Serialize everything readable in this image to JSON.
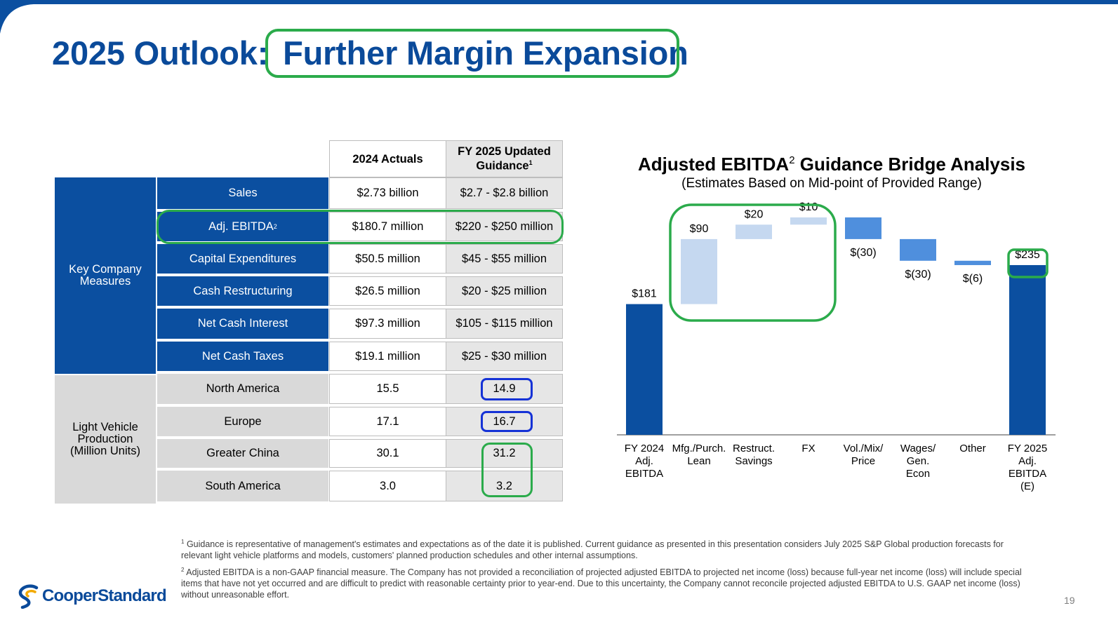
{
  "header": {
    "title_prefix": "2025 Outlook:",
    "title_highlight": "Further Margin Expansion"
  },
  "colors": {
    "brand_blue": "#0b4fa0",
    "light_bar": "#c5d8f0",
    "mid_bar": "#4f8fdd",
    "highlight_green": "#2bab4b",
    "highlight_blue": "#1532d6"
  },
  "table": {
    "col_headers": {
      "actuals": "2024 Actuals",
      "guidance": "FY 2025 Updated Guidance",
      "guidance_sup": "1"
    },
    "group_key": "Key Company Measures",
    "group_lv": "Light Vehicle Production (Million Units)",
    "rows": [
      {
        "label": "Sales",
        "actual": "$2.73 billion",
        "guidance": "$2.7 - $2.8 billion"
      },
      {
        "label": "Adj. EBITDA",
        "label_sup": "2",
        "actual": "$180.7 million",
        "guidance": "$220 - $250 million"
      },
      {
        "label": "Capital Expenditures",
        "actual": "$50.5 million",
        "guidance": "$45 - $55 million"
      },
      {
        "label": "Cash Restructuring",
        "actual": "$26.5 million",
        "guidance": "$20 - $25 million"
      },
      {
        "label": "Net Cash Interest",
        "actual": "$97.3 million",
        "guidance": "$105 - $115 million"
      },
      {
        "label": "Net Cash Taxes",
        "actual": "$19.1 million",
        "guidance": "$25 - $30 million"
      },
      {
        "label": "North America",
        "actual": "15.5",
        "guidance": "14.9"
      },
      {
        "label": "Europe",
        "actual": "17.1",
        "guidance": "16.7"
      },
      {
        "label": "Greater China",
        "actual": "30.1",
        "guidance": "31.2"
      },
      {
        "label": "South America",
        "actual": "3.0",
        "guidance": "3.2"
      }
    ]
  },
  "chart": {
    "title": "Adjusted EBITDA",
    "title_sup": "2",
    "title_rest": " Guidance Bridge Analysis",
    "subtitle": "(Estimates Based on Mid-point of Provided Range)"
  },
  "chart_data": {
    "type": "bar",
    "subtype": "waterfall",
    "title": "Adjusted EBITDA2 Guidance Bridge Analysis",
    "subtitle": "(Estimates Based on Mid-point of Provided Range)",
    "categories": [
      "FY 2024 Adj. EBITDA",
      "Mfg./Purch. Lean",
      "Restruct. Savings",
      "FX",
      "Vol./Mix/ Price",
      "Wages/ Gen. Econ",
      "Other",
      "FY 2025 Adj. EBITDA (E)"
    ],
    "values": [
      181,
      90,
      20,
      10,
      -30,
      -30,
      -6,
      235
    ],
    "data_labels": [
      "$181",
      "$90",
      "$20",
      "$10",
      "$(30)",
      "$(30)",
      "$(6)",
      "$235"
    ],
    "bar_kinds": [
      "total",
      "increase",
      "increase",
      "increase",
      "decrease",
      "decrease",
      "decrease",
      "total"
    ],
    "ylim": [
      0,
      301
    ],
    "xlabel": "",
    "ylabel": "",
    "grid": false
  },
  "footnotes": {
    "n1_sup": "1",
    "n1": "Guidance is representative of management's estimates and expectations as of the date it is published. Current guidance as presented in this presentation considers July 2025 S&P Global production forecasts for relevant light vehicle platforms and models, customers' planned production schedules and other internal assumptions.",
    "n2_sup": "2",
    "n2": "Adjusted EBITDA is a non-GAAP financial measure. The Company has not provided a reconciliation of projected adjusted EBITDA to projected net income (loss) because full-year net income (loss) will include special items that have not yet occurred and are difficult to predict with reasonable certainty prior to year-end. Due to this uncertainty, the Company cannot reconcile projected adjusted EBITDA to U.S. GAAP net income (loss) without unreasonable effort."
  },
  "logo": {
    "text": "CooperStandard"
  },
  "page_number": "19"
}
